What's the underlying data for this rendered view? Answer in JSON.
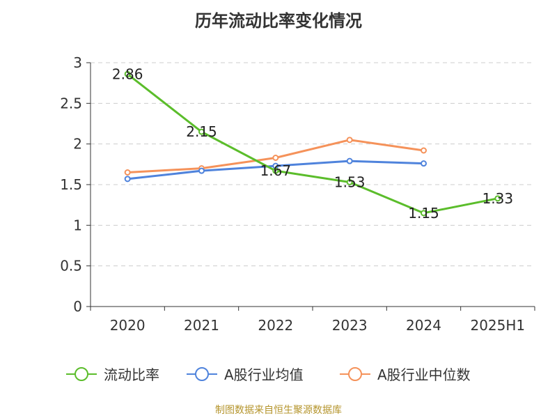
{
  "title": "历年流动比率变化情况",
  "source": "制图数据来自恒生聚源数据库",
  "chart_data": {
    "type": "line",
    "categories": [
      "2020",
      "2021",
      "2022",
      "2023",
      "2024",
      "2025H1"
    ],
    "yticks": [
      "0",
      "0.5",
      "1",
      "1.5",
      "2",
      "2.5",
      "3"
    ],
    "ylim": [
      0,
      3
    ],
    "grid": true,
    "legend_position": "bottom",
    "series": [
      {
        "name": "流动比率",
        "color": "#5bbd2b",
        "values": [
          2.86,
          2.15,
          1.67,
          1.53,
          1.15,
          1.33
        ],
        "labels": [
          "2.86",
          "2.15",
          "1.67",
          "1.53",
          "1.15",
          "1.33"
        ]
      },
      {
        "name": "A股行业均值",
        "color": "#4f83dc",
        "values": [
          1.57,
          1.67,
          1.73,
          1.79,
          1.76,
          null
        ]
      },
      {
        "name": "A股行业中位数",
        "color": "#f5925a",
        "values": [
          1.65,
          1.7,
          1.83,
          2.05,
          1.92,
          null
        ]
      }
    ]
  }
}
